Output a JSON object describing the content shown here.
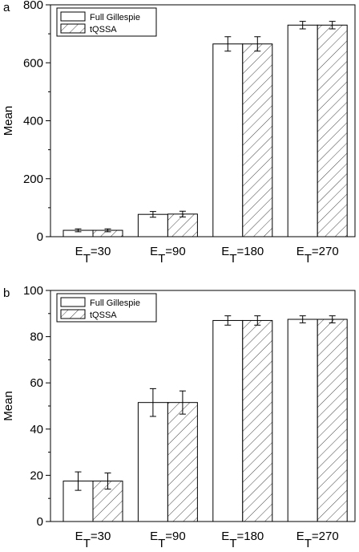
{
  "chart_data": [
    {
      "type": "bar",
      "panel": "a",
      "ylabel": "Mean",
      "categories": [
        [
          "E",
          "T",
          "=30"
        ],
        [
          "E",
          "T",
          "=90"
        ],
        [
          "E",
          "T",
          "=180"
        ],
        [
          "E",
          "T",
          "=270"
        ]
      ],
      "series": [
        {
          "name": "Full Gillespie",
          "color": "#ffffff",
          "values": [
            22,
            77,
            665,
            730
          ],
          "errors": [
            5,
            10,
            25,
            13
          ]
        },
        {
          "name": "tQSSA",
          "color": "hatch",
          "values": [
            22,
            78,
            665,
            730
          ],
          "errors": [
            5,
            10,
            25,
            13
          ]
        }
      ],
      "ylim": [
        0,
        800
      ],
      "yticks": [
        0,
        200,
        400,
        600,
        800
      ],
      "minor_yticks": [
        100,
        300,
        500,
        700
      ],
      "legend": "upper left"
    },
    {
      "type": "bar",
      "panel": "b",
      "ylabel": "Mean",
      "categories": [
        [
          "E",
          "T",
          "=30"
        ],
        [
          "E",
          "T",
          "=90"
        ],
        [
          "E",
          "T",
          "=180"
        ],
        [
          "E",
          "T",
          "=270"
        ]
      ],
      "series": [
        {
          "name": "Full Gillespie",
          "color": "#ffffff",
          "values": [
            17.5,
            51.5,
            87,
            87.5
          ],
          "errors": [
            4,
            6,
            2,
            1.5
          ]
        },
        {
          "name": "tQSSA",
          "color": "hatch",
          "values": [
            17.5,
            51.5,
            87,
            87.5
          ],
          "errors": [
            3.5,
            5,
            2,
            1.5
          ]
        }
      ],
      "ylim": [
        0,
        100
      ],
      "yticks": [
        0,
        20,
        40,
        60,
        80,
        100
      ],
      "minor_yticks": [
        10,
        30,
        50,
        70,
        90
      ],
      "legend": "upper left"
    }
  ]
}
